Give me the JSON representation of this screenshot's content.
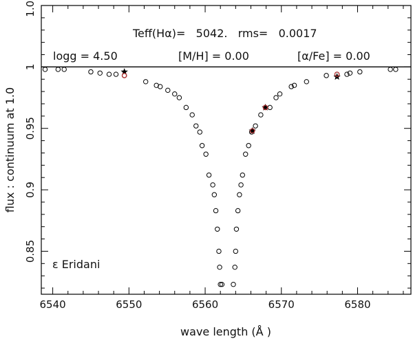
{
  "chart_data": {
    "type": "scatter",
    "xlabel": "wave length (Å )",
    "ylabel": "flux : continuum at 1.0",
    "xlim": [
      6538.5,
      6587
    ],
    "ylim": [
      0.815,
      1.05
    ],
    "xticks": [
      6540,
      6550,
      6560,
      6570,
      6580
    ],
    "yticks": [
      0.85,
      0.9,
      0.95,
      1,
      1.05
    ],
    "ytick_labels": [
      "0.85",
      "0.9",
      "0.95",
      "1",
      "1.05"
    ],
    "grid": false,
    "reference_line": {
      "y": 1.0
    },
    "annotations": {
      "teff_line": "Teff(Hα)=   5042.   rms=   0.0017",
      "params_line": {
        "logg": "logg = 4.50",
        "metal": "[M/H] = 0.00",
        "alpha": "[α/Fe] = 0.00"
      },
      "star_name": "ε Eridani"
    },
    "series": [
      {
        "marker": "open-circle",
        "color": "#000000",
        "x": [
          6539.0,
          6540.7,
          6541.5,
          6545.0,
          6546.2,
          6547.4,
          6548.3,
          6549.4,
          6552.2,
          6553.6,
          6554.1,
          6555.1,
          6556.0,
          6556.6,
          6557.5,
          6558.3,
          6558.8,
          6559.3,
          6559.6,
          6560.1,
          6560.5,
          6561.0,
          6561.2,
          6561.4,
          6561.6,
          6561.8,
          6561.9,
          6562.0,
          6562.2,
          6563.7,
          6563.9,
          6564.0,
          6564.1,
          6564.3,
          6564.5,
          6564.7,
          6564.9,
          6565.3,
          6565.7,
          6566.1,
          6566.6,
          6567.3,
          6568.5,
          6569.3,
          6569.8,
          6571.3,
          6571.7,
          6573.3,
          6575.9,
          6577.3,
          6578.6,
          6579.0,
          6580.3,
          6584.3,
          6585.0
        ],
        "y": [
          0.998,
          0.998,
          0.998,
          0.996,
          0.995,
          0.994,
          0.994,
          0.993,
          0.988,
          0.985,
          0.984,
          0.981,
          0.978,
          0.975,
          0.967,
          0.961,
          0.952,
          0.947,
          0.936,
          0.929,
          0.912,
          0.904,
          0.896,
          0.883,
          0.868,
          0.85,
          0.837,
          0.823,
          0.823,
          0.823,
          0.837,
          0.85,
          0.868,
          0.883,
          0.896,
          0.904,
          0.912,
          0.929,
          0.936,
          0.947,
          0.952,
          0.961,
          0.967,
          0.975,
          0.978,
          0.984,
          0.985,
          0.988,
          0.993,
          0.994,
          0.994,
          0.995,
          0.996,
          0.998,
          0.998
        ]
      },
      {
        "marker": "star",
        "color": "#000000",
        "x": [
          6549.4,
          6566.2,
          6567.9,
          6577.3
        ],
        "y": [
          0.996,
          0.948,
          0.967,
          0.992
        ]
      },
      {
        "marker": "small-circle",
        "color": "#b03030",
        "x": [
          6549.4,
          6566.2,
          6567.9,
          6577.3
        ],
        "y": [
          0.993,
          0.948,
          0.967,
          0.994
        ]
      }
    ]
  }
}
